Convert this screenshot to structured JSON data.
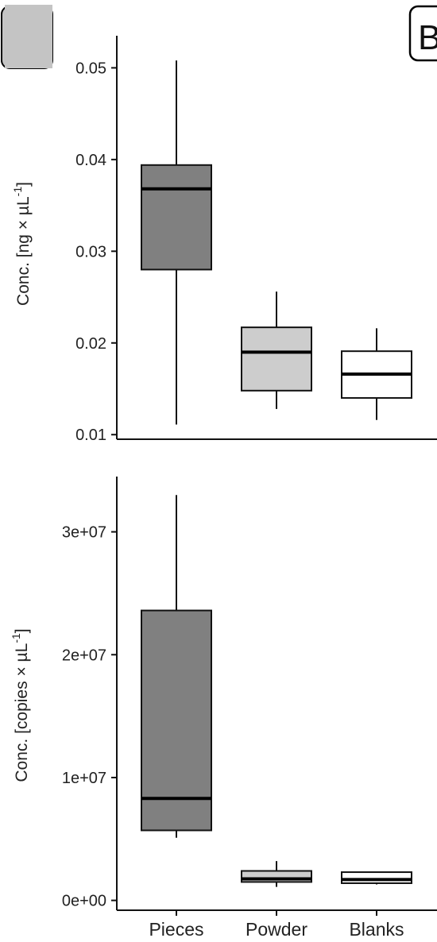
{
  "panel_label": "B",
  "colors": {
    "Pieces": "#808080",
    "Powder": "#cdcdcd",
    "Blanks": "#ffffff",
    "stroke": "#111111"
  },
  "chart_data": [
    {
      "type": "boxplot",
      "ylabel_main": "Conc. [ng × µL",
      "ylabel_sup": "-1",
      "ylabel_end": "]",
      "categories": [
        "Pieces",
        "Powder",
        "Blanks"
      ],
      "yticks": [
        0.01,
        0.02,
        0.03,
        0.04,
        0.05
      ],
      "ytick_labels": [
        "0.01",
        "0.02",
        "0.03",
        "0.04",
        "0.05"
      ],
      "ylim": [
        0.0095,
        0.0535
      ],
      "boxes": [
        {
          "category": "Pieces",
          "min": 0.0111,
          "q1": 0.028,
          "median": 0.0368,
          "q3": 0.0394,
          "max": 0.0508
        },
        {
          "category": "Powder",
          "min": 0.0128,
          "q1": 0.0148,
          "median": 0.019,
          "q3": 0.0217,
          "max": 0.0256
        },
        {
          "category": "Blanks",
          "min": 0.0116,
          "q1": 0.014,
          "median": 0.0166,
          "q3": 0.0191,
          "max": 0.0216
        }
      ]
    },
    {
      "type": "boxplot",
      "ylabel_main": "Conc. [copies × µL",
      "ylabel_sup": "-1",
      "ylabel_end": "]",
      "categories": [
        "Pieces",
        "Powder",
        "Blanks"
      ],
      "category_labels": [
        "Pieces",
        "Powder",
        "Blanks"
      ],
      "yticks": [
        0,
        10000000,
        20000000,
        30000000
      ],
      "ytick_labels": [
        "0e+00",
        "1e+07",
        "2e+07",
        "3e+07"
      ],
      "ylim": [
        -800000,
        34500000
      ],
      "boxes": [
        {
          "category": "Pieces",
          "min": 5100000,
          "q1": 5700000,
          "median": 8300000,
          "q3": 23600000,
          "max": 33000000
        },
        {
          "category": "Powder",
          "min": 1100000,
          "q1": 1500000,
          "median": 1750000,
          "q3": 2400000,
          "max": 3200000
        },
        {
          "category": "Blanks",
          "min": 1300000,
          "q1": 1400000,
          "median": 1700000,
          "q3": 2300000,
          "max": 2300000
        }
      ]
    }
  ]
}
